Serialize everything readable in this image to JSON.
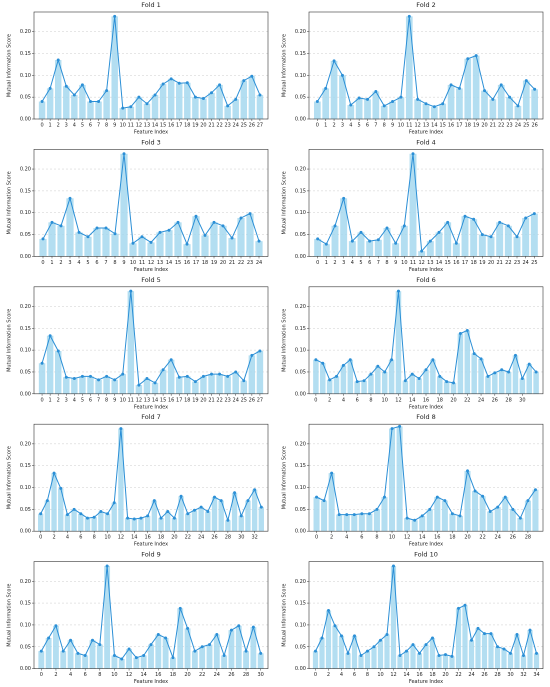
{
  "chart_data": [
    {
      "type": "bar",
      "title": "Fold 1",
      "xlabel": "Feature Index",
      "ylabel": "Mutual Information Score",
      "color": "#a6d8ee",
      "line_color": "#2b8fd6",
      "grid": true,
      "x": [
        0,
        1,
        2,
        3,
        4,
        5,
        6,
        7,
        8,
        9,
        10,
        11,
        12,
        13,
        14,
        15,
        16,
        17,
        18,
        19,
        20,
        21,
        22,
        23,
        24,
        25,
        26,
        27
      ],
      "values": [
        0.04,
        0.07,
        0.135,
        0.075,
        0.055,
        0.078,
        0.04,
        0.04,
        0.065,
        0.235,
        0.025,
        0.028,
        0.05,
        0.035,
        0.055,
        0.08,
        0.092,
        0.082,
        0.083,
        0.05,
        0.047,
        0.06,
        0.078,
        0.03,
        0.045,
        0.088,
        0.098,
        0.055
      ],
      "xlim": [
        -1,
        28
      ],
      "xticks": [
        0,
        1,
        2,
        3,
        4,
        5,
        6,
        7,
        8,
        9,
        10,
        11,
        12,
        13,
        14,
        15,
        16,
        17,
        18,
        19,
        20,
        21,
        22,
        23,
        24,
        25,
        26,
        27
      ],
      "ylim": [
        0,
        0.245
      ],
      "yticks": [
        {
          "value": 0,
          "label": "0.00"
        },
        {
          "value": 0.05,
          "label": "0.05"
        },
        {
          "value": 0.1,
          "label": "0.10"
        },
        {
          "value": 0.15,
          "label": "0.15"
        },
        {
          "value": 0.2,
          "label": "0.20"
        }
      ]
    },
    {
      "type": "bar",
      "title": "Fold 2",
      "xlabel": "Feature Index",
      "ylabel": "Mutual Information Score",
      "color": "#a6d8ee",
      "line_color": "#2b8fd6",
      "grid": true,
      "x": [
        0,
        1,
        2,
        3,
        4,
        5,
        6,
        7,
        8,
        9,
        10,
        11,
        12,
        13,
        14,
        15,
        16,
        17,
        18,
        19,
        20,
        21,
        22,
        23,
        24,
        25,
        26
      ],
      "values": [
        0.04,
        0.07,
        0.133,
        0.1,
        0.032,
        0.048,
        0.045,
        0.063,
        0.03,
        0.04,
        0.05,
        0.235,
        0.045,
        0.035,
        0.028,
        0.035,
        0.078,
        0.07,
        0.138,
        0.145,
        0.065,
        0.045,
        0.078,
        0.05,
        0.03,
        0.088,
        0.068
      ],
      "xlim": [
        -1,
        27
      ],
      "xticks": [
        0,
        1,
        2,
        3,
        4,
        5,
        6,
        7,
        8,
        9,
        10,
        11,
        12,
        13,
        14,
        15,
        16,
        17,
        18,
        19,
        20,
        21,
        22,
        23,
        24,
        25,
        26
      ],
      "ylim": [
        0,
        0.245
      ],
      "yticks": [
        {
          "value": 0,
          "label": "0.00"
        },
        {
          "value": 0.05,
          "label": "0.05"
        },
        {
          "value": 0.1,
          "label": "0.10"
        },
        {
          "value": 0.15,
          "label": "0.15"
        },
        {
          "value": 0.2,
          "label": "0.20"
        }
      ]
    },
    {
      "type": "bar",
      "title": "Fold 3",
      "xlabel": "Feature Index",
      "ylabel": "Mutual Information Score",
      "color": "#a6d8ee",
      "line_color": "#2b8fd6",
      "grid": true,
      "x": [
        0,
        1,
        2,
        3,
        4,
        5,
        6,
        7,
        8,
        9,
        10,
        11,
        12,
        13,
        14,
        15,
        16,
        17,
        18,
        19,
        20,
        21,
        22,
        23,
        24
      ],
      "values": [
        0.04,
        0.078,
        0.07,
        0.133,
        0.055,
        0.045,
        0.065,
        0.065,
        0.052,
        0.235,
        0.03,
        0.045,
        0.032,
        0.055,
        0.06,
        0.078,
        0.028,
        0.092,
        0.048,
        0.078,
        0.07,
        0.042,
        0.088,
        0.098,
        0.035
      ],
      "xlim": [
        -1,
        25
      ],
      "xticks": [
        0,
        1,
        2,
        3,
        4,
        5,
        6,
        7,
        8,
        9,
        10,
        11,
        12,
        13,
        14,
        15,
        16,
        17,
        18,
        19,
        20,
        21,
        22,
        23,
        24
      ],
      "ylim": [
        0,
        0.245
      ],
      "yticks": [
        {
          "value": 0,
          "label": "0.00"
        },
        {
          "value": 0.05,
          "label": "0.05"
        },
        {
          "value": 0.1,
          "label": "0.10"
        },
        {
          "value": 0.15,
          "label": "0.15"
        },
        {
          "value": 0.2,
          "label": "0.20"
        }
      ]
    },
    {
      "type": "bar",
      "title": "Fold 4",
      "xlabel": "Feature Index",
      "ylabel": "Mutual Information Score",
      "color": "#a6d8ee",
      "line_color": "#2b8fd6",
      "grid": true,
      "x": [
        0,
        1,
        2,
        3,
        4,
        5,
        6,
        7,
        8,
        9,
        10,
        11,
        12,
        13,
        14,
        15,
        16,
        17,
        18,
        19,
        20,
        21,
        22,
        23,
        24,
        25
      ],
      "values": [
        0.04,
        0.028,
        0.07,
        0.133,
        0.035,
        0.055,
        0.035,
        0.038,
        0.065,
        0.03,
        0.07,
        0.235,
        0.012,
        0.035,
        0.055,
        0.078,
        0.03,
        0.092,
        0.085,
        0.05,
        0.045,
        0.078,
        0.07,
        0.045,
        0.088,
        0.098
      ],
      "xlim": [
        -1,
        26
      ],
      "xticks": [
        0,
        1,
        2,
        3,
        4,
        5,
        6,
        7,
        8,
        9,
        10,
        11,
        12,
        13,
        14,
        15,
        16,
        17,
        18,
        19,
        20,
        21,
        22,
        23,
        24,
        25
      ],
      "ylim": [
        0,
        0.245
      ],
      "yticks": [
        {
          "value": 0,
          "label": "0.00"
        },
        {
          "value": 0.05,
          "label": "0.05"
        },
        {
          "value": 0.1,
          "label": "0.10"
        },
        {
          "value": 0.15,
          "label": "0.15"
        },
        {
          "value": 0.2,
          "label": "0.20"
        }
      ]
    },
    {
      "type": "bar",
      "title": "Fold 5",
      "xlabel": "Feature Index",
      "ylabel": "Mutual Information Score",
      "color": "#a6d8ee",
      "line_color": "#2b8fd6",
      "grid": true,
      "x": [
        0,
        1,
        2,
        3,
        4,
        5,
        6,
        7,
        8,
        9,
        10,
        11,
        12,
        13,
        14,
        15,
        16,
        17,
        18,
        19,
        20,
        21,
        22,
        23,
        24,
        25,
        26,
        27
      ],
      "values": [
        0.07,
        0.133,
        0.098,
        0.038,
        0.035,
        0.04,
        0.04,
        0.032,
        0.04,
        0.032,
        0.045,
        0.235,
        0.02,
        0.035,
        0.025,
        0.055,
        0.078,
        0.038,
        0.04,
        0.028,
        0.04,
        0.045,
        0.045,
        0.04,
        0.05,
        0.03,
        0.088,
        0.098
      ],
      "xlim": [
        -1,
        28
      ],
      "xticks": [
        0,
        1,
        2,
        3,
        4,
        5,
        6,
        7,
        8,
        9,
        10,
        11,
        12,
        13,
        14,
        15,
        16,
        17,
        18,
        19,
        20,
        21,
        22,
        23,
        24,
        25,
        26,
        27
      ],
      "ylim": [
        0,
        0.245
      ],
      "yticks": [
        {
          "value": 0,
          "label": "0.00"
        },
        {
          "value": 0.05,
          "label": "0.05"
        },
        {
          "value": 0.1,
          "label": "0.10"
        },
        {
          "value": 0.15,
          "label": "0.15"
        },
        {
          "value": 0.2,
          "label": "0.20"
        }
      ]
    },
    {
      "type": "bar",
      "title": "Fold 6",
      "xlabel": "Feature Index",
      "ylabel": "Mutual Information Score",
      "color": "#a6d8ee",
      "line_color": "#2b8fd6",
      "grid": true,
      "x": [
        0,
        1,
        2,
        3,
        4,
        5,
        6,
        7,
        8,
        9,
        10,
        11,
        12,
        13,
        14,
        15,
        16,
        17,
        18,
        19,
        20,
        21,
        22,
        23,
        24,
        25,
        26,
        27,
        28,
        29,
        30,
        31,
        32
      ],
      "values": [
        0.078,
        0.07,
        0.032,
        0.04,
        0.065,
        0.078,
        0.028,
        0.03,
        0.045,
        0.063,
        0.05,
        0.078,
        0.235,
        0.03,
        0.045,
        0.035,
        0.055,
        0.078,
        0.04,
        0.028,
        0.025,
        0.138,
        0.145,
        0.092,
        0.08,
        0.04,
        0.048,
        0.055,
        0.05,
        0.088,
        0.035,
        0.068,
        0.05
      ],
      "xlim": [
        -1,
        33
      ],
      "xticks": [
        0,
        2,
        4,
        6,
        8,
        10,
        12,
        14,
        16,
        18,
        20,
        22,
        24,
        26,
        28,
        30
      ],
      "ylim": [
        0,
        0.245
      ],
      "yticks": [
        {
          "value": 0,
          "label": "0.00"
        },
        {
          "value": 0.05,
          "label": "0.05"
        },
        {
          "value": 0.1,
          "label": "0.10"
        },
        {
          "value": 0.15,
          "label": "0.15"
        },
        {
          "value": 0.2,
          "label": "0.20"
        }
      ]
    },
    {
      "type": "bar",
      "title": "Fold 7",
      "xlabel": "Feature Index",
      "ylabel": "Mutual Information Score",
      "color": "#a6d8ee",
      "line_color": "#2b8fd6",
      "grid": true,
      "x": [
        0,
        1,
        2,
        3,
        4,
        5,
        6,
        7,
        8,
        9,
        10,
        11,
        12,
        13,
        14,
        15,
        16,
        17,
        18,
        19,
        20,
        21,
        22,
        23,
        24,
        25,
        26,
        27,
        28,
        29,
        30,
        31,
        32,
        33
      ],
      "values": [
        0.04,
        0.07,
        0.133,
        0.098,
        0.038,
        0.05,
        0.04,
        0.03,
        0.032,
        0.045,
        0.04,
        0.065,
        0.235,
        0.03,
        0.028,
        0.03,
        0.035,
        0.07,
        0.03,
        0.045,
        0.03,
        0.08,
        0.04,
        0.048,
        0.055,
        0.045,
        0.078,
        0.07,
        0.025,
        0.088,
        0.035,
        0.07,
        0.095,
        0.055
      ],
      "xlim": [
        -1,
        34
      ],
      "xticks": [
        0,
        2,
        4,
        6,
        8,
        10,
        12,
        14,
        16,
        18,
        20,
        22,
        24,
        26,
        28,
        30,
        32
      ],
      "ylim": [
        0,
        0.245
      ],
      "yticks": [
        {
          "value": 0,
          "label": "0.00"
        },
        {
          "value": 0.05,
          "label": "0.05"
        },
        {
          "value": 0.1,
          "label": "0.10"
        },
        {
          "value": 0.15,
          "label": "0.15"
        },
        {
          "value": 0.2,
          "label": "0.20"
        }
      ]
    },
    {
      "type": "bar",
      "title": "Fold 8",
      "xlabel": "Feature Index",
      "ylabel": "Mutual Information Score",
      "color": "#a6d8ee",
      "line_color": "#2b8fd6",
      "grid": true,
      "x": [
        0,
        1,
        2,
        3,
        4,
        5,
        6,
        7,
        8,
        9,
        10,
        11,
        12,
        13,
        14,
        15,
        16,
        17,
        18,
        19,
        20,
        21,
        22,
        23,
        24,
        25,
        26,
        27,
        28,
        29
      ],
      "values": [
        0.078,
        0.07,
        0.133,
        0.038,
        0.038,
        0.038,
        0.04,
        0.04,
        0.05,
        0.078,
        0.235,
        0.24,
        0.03,
        0.025,
        0.035,
        0.05,
        0.078,
        0.07,
        0.04,
        0.035,
        0.138,
        0.092,
        0.08,
        0.045,
        0.055,
        0.078,
        0.05,
        0.03,
        0.07,
        0.095
      ],
      "xlim": [
        -1,
        30
      ],
      "xticks": [
        0,
        2,
        4,
        6,
        8,
        10,
        12,
        14,
        16,
        18,
        20,
        22,
        24,
        26,
        28
      ],
      "ylim": [
        0,
        0.245
      ],
      "yticks": [
        {
          "value": 0,
          "label": "0.00"
        },
        {
          "value": 0.05,
          "label": "0.05"
        },
        {
          "value": 0.1,
          "label": "0.10"
        },
        {
          "value": 0.15,
          "label": "0.15"
        },
        {
          "value": 0.2,
          "label": "0.20"
        }
      ]
    },
    {
      "type": "bar",
      "title": "Fold 9",
      "xlabel": "Feature Index",
      "ylabel": "Mutual Information Score",
      "color": "#a6d8ee",
      "line_color": "#2b8fd6",
      "grid": true,
      "x": [
        0,
        1,
        2,
        3,
        4,
        5,
        6,
        7,
        8,
        9,
        10,
        11,
        12,
        13,
        14,
        15,
        16,
        17,
        18,
        19,
        20,
        21,
        22,
        23,
        24,
        25,
        26,
        27,
        28,
        29,
        30
      ],
      "values": [
        0.04,
        0.07,
        0.098,
        0.04,
        0.065,
        0.035,
        0.03,
        0.065,
        0.055,
        0.235,
        0.03,
        0.022,
        0.045,
        0.025,
        0.03,
        0.055,
        0.078,
        0.07,
        0.025,
        0.138,
        0.092,
        0.04,
        0.05,
        0.055,
        0.078,
        0.03,
        0.088,
        0.098,
        0.04,
        0.095,
        0.035
      ],
      "xlim": [
        -1,
        31
      ],
      "xticks": [
        0,
        2,
        4,
        6,
        8,
        10,
        12,
        14,
        16,
        18,
        20,
        22,
        24,
        26,
        28,
        30
      ],
      "ylim": [
        0,
        0.245
      ],
      "yticks": [
        {
          "value": 0,
          "label": "0.00"
        },
        {
          "value": 0.05,
          "label": "0.05"
        },
        {
          "value": 0.1,
          "label": "0.10"
        },
        {
          "value": 0.15,
          "label": "0.15"
        },
        {
          "value": 0.2,
          "label": "0.20"
        }
      ]
    },
    {
      "type": "bar",
      "title": "Fold 10",
      "xlabel": "Feature Index",
      "ylabel": "Mutual Information Score",
      "color": "#a6d8ee",
      "line_color": "#2b8fd6",
      "grid": true,
      "x": [
        0,
        1,
        2,
        3,
        4,
        5,
        6,
        7,
        8,
        9,
        10,
        11,
        12,
        13,
        14,
        15,
        16,
        17,
        18,
        19,
        20,
        21,
        22,
        23,
        24,
        25,
        26,
        27,
        28,
        29,
        30,
        31,
        32,
        33,
        34
      ],
      "values": [
        0.04,
        0.07,
        0.133,
        0.098,
        0.075,
        0.035,
        0.075,
        0.03,
        0.04,
        0.05,
        0.065,
        0.078,
        0.235,
        0.03,
        0.04,
        0.055,
        0.035,
        0.055,
        0.07,
        0.03,
        0.032,
        0.028,
        0.138,
        0.145,
        0.065,
        0.092,
        0.08,
        0.08,
        0.05,
        0.045,
        0.035,
        0.078,
        0.03,
        0.088,
        0.035
      ],
      "xlim": [
        -1,
        35
      ],
      "xticks": [
        0,
        2,
        4,
        6,
        8,
        10,
        12,
        14,
        16,
        18,
        20,
        22,
        24,
        26,
        28,
        30,
        32,
        34
      ],
      "ylim": [
        0,
        0.245
      ],
      "yticks": [
        {
          "value": 0,
          "label": "0.00"
        },
        {
          "value": 0.05,
          "label": "0.05"
        },
        {
          "value": 0.1,
          "label": "0.10"
        },
        {
          "value": 0.15,
          "label": "0.15"
        },
        {
          "value": 0.2,
          "label": "0.20"
        }
      ]
    }
  ]
}
